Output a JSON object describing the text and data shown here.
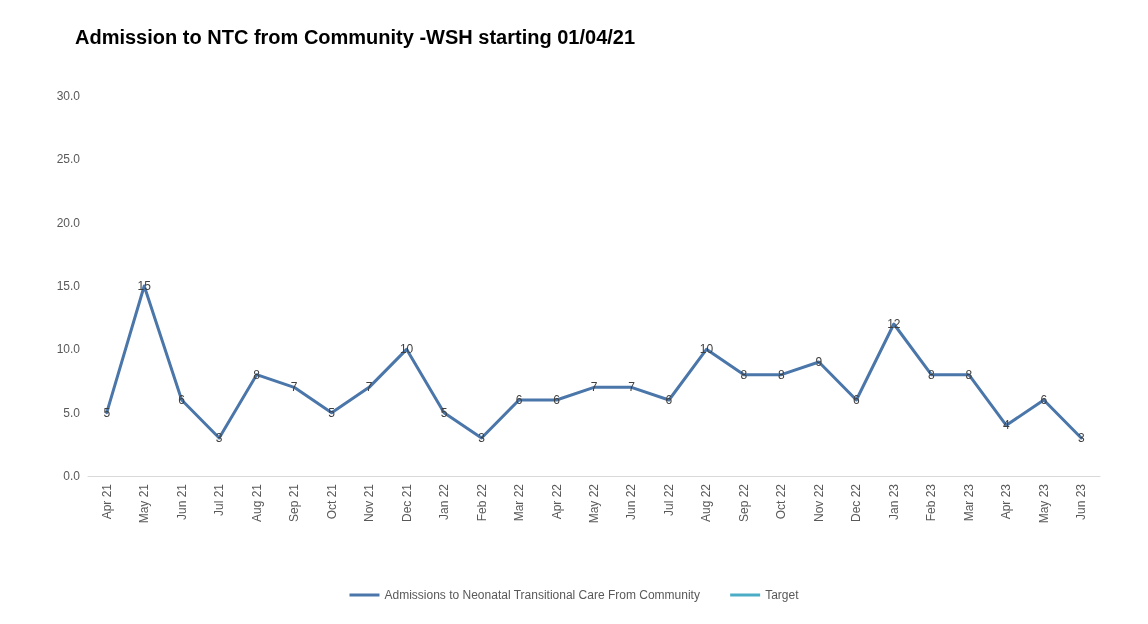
{
  "chart_data": {
    "type": "line",
    "title": "Admission to NTC from Community -WSH starting 01/04/21",
    "categories": [
      "Apr 21",
      "May 21",
      "Jun 21",
      "Jul 21",
      "Aug 21",
      "Sep 21",
      "Oct 21",
      "Nov 21",
      "Dec 21",
      "Jan 22",
      "Feb 22",
      "Mar 22",
      "Apr 22",
      "May 22",
      "Jun 22",
      "Jul 22",
      "Aug 22",
      "Sep 22",
      "Oct 22",
      "Nov 22",
      "Dec 22",
      "Jan 23",
      "Feb 23",
      "Mar 23",
      "Apr 23",
      "May 23",
      "Jun 23"
    ],
    "series": [
      {
        "name": "Admissions to Neonatal Transitional Care From Community",
        "color": "#4a76aa",
        "values": [
          5,
          15,
          6,
          3,
          8,
          7,
          5,
          7,
          10,
          5,
          3,
          6,
          6,
          7,
          7,
          6,
          10,
          8,
          8,
          9,
          6,
          12,
          8,
          8,
          4,
          6,
          3
        ]
      },
      {
        "name": "Target",
        "color": "#4bacc6",
        "values": [
          null,
          null,
          null,
          null,
          null,
          null,
          null,
          null,
          null,
          null,
          null,
          null,
          null,
          null,
          null,
          null,
          null,
          null,
          null,
          null,
          null,
          null,
          null,
          null,
          null,
          null,
          null
        ]
      }
    ],
    "ylim": [
      0,
      30
    ],
    "yticks": [
      {
        "value": 0,
        "label": "0.0"
      },
      {
        "value": 5,
        "label": "5.0"
      },
      {
        "value": 10,
        "label": "10.0"
      },
      {
        "value": 15,
        "label": "15.0"
      },
      {
        "value": 20,
        "label": "20.0"
      },
      {
        "value": 25,
        "label": "25.0"
      },
      {
        "value": 30,
        "label": "30.0"
      }
    ],
    "grid": false,
    "legend": "bottom",
    "marker": "none",
    "line_style": "solid",
    "data_labels": true
  }
}
